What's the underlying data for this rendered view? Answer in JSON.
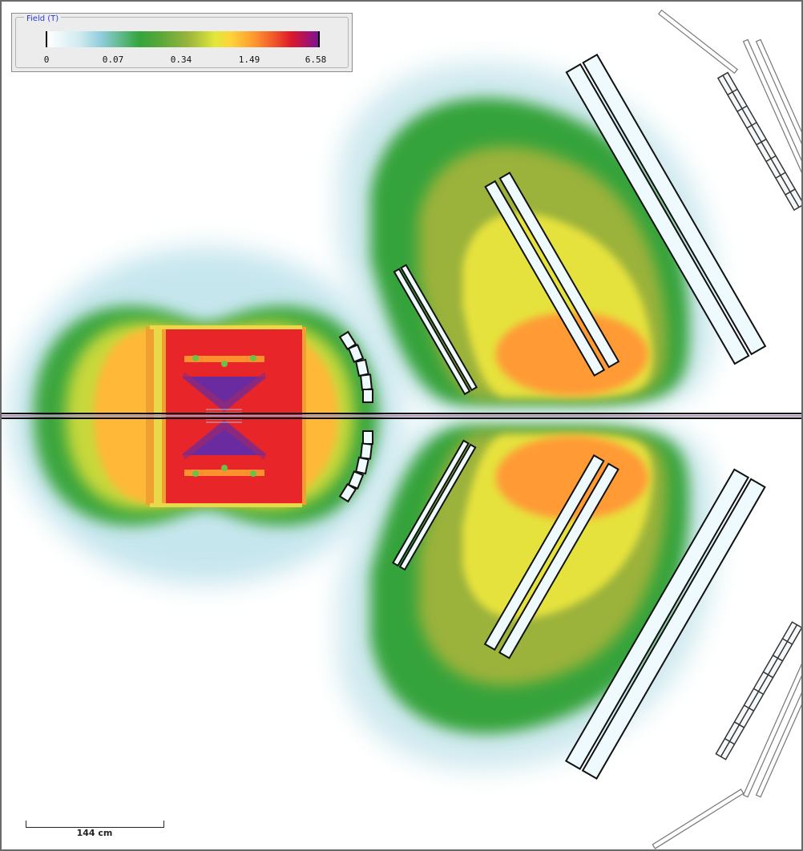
{
  "legend": {
    "title": "Field (T)",
    "ticks": [
      "0",
      "0.07",
      "0.34",
      "1.49",
      "6.58"
    ]
  },
  "scalebar": {
    "label": "144 cm"
  },
  "colors": {
    "background": "#ffffff",
    "frame": "#6a6a6a",
    "beamline": "#000000",
    "detector_fill": "#eefafd",
    "detector_stroke": "#111111"
  }
}
